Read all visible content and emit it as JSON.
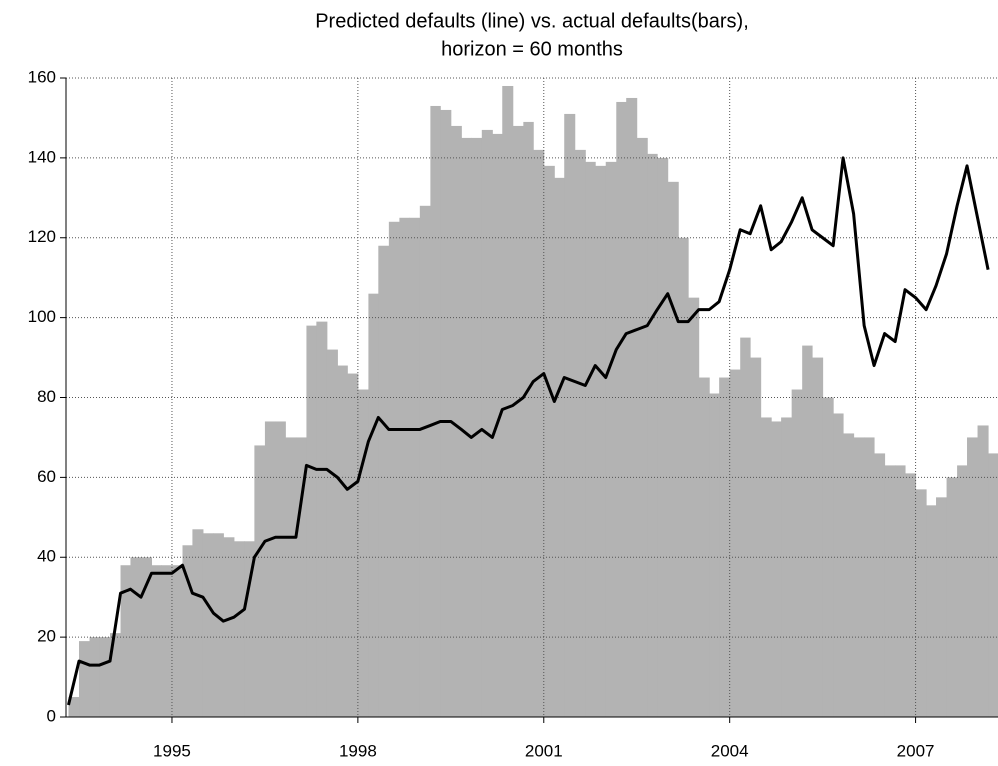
{
  "chart_data": {
    "type": "combo",
    "title": [
      "Predicted defaults (line) vs. actual defaults(bars),",
      "horizon = 60 months"
    ],
    "x": [
      1993.33,
      1993.5,
      1993.67,
      1993.83,
      1994,
      1994.17,
      1994.33,
      1994.5,
      1994.67,
      1994.83,
      1995,
      1995.17,
      1995.33,
      1995.5,
      1995.67,
      1995.83,
      1996,
      1996.17,
      1996.33,
      1996.5,
      1996.67,
      1996.83,
      1997,
      1997.17,
      1997.33,
      1997.5,
      1997.67,
      1997.83,
      1998,
      1998.17,
      1998.33,
      1998.5,
      1998.67,
      1998.83,
      1999,
      1999.17,
      1999.33,
      1999.5,
      1999.67,
      1999.83,
      2000,
      2000.17,
      2000.33,
      2000.5,
      2000.67,
      2000.83,
      2001,
      2001.17,
      2001.33,
      2001.5,
      2001.67,
      2001.83,
      2002,
      2002.17,
      2002.33,
      2002.5,
      2002.67,
      2002.83,
      2003,
      2003.17,
      2003.33,
      2003.5,
      2003.67,
      2003.83,
      2004,
      2004.17,
      2004.33,
      2004.5,
      2004.67,
      2004.83,
      2005,
      2005.17,
      2005.33,
      2005.5,
      2005.67,
      2005.83,
      2006,
      2006.17,
      2006.33,
      2006.5,
      2006.67,
      2006.83,
      2007,
      2007.17,
      2007.33,
      2007.5,
      2007.67,
      2007.83,
      2008,
      2008.17
    ],
    "series": [
      {
        "type": "bar",
        "color": "#b3b3b3",
        "values": [
          5,
          19,
          20,
          20,
          21,
          38,
          40,
          40,
          38,
          38,
          38,
          43,
          47,
          46,
          46,
          45,
          44,
          44,
          68,
          74,
          74,
          70,
          70,
          98,
          99,
          92,
          88,
          86,
          82,
          106,
          118,
          124,
          125,
          125,
          128,
          153,
          152,
          148,
          145,
          145,
          147,
          146,
          158,
          148,
          149,
          142,
          138,
          135,
          151,
          142,
          139,
          138,
          139,
          154,
          155,
          145,
          141,
          140,
          134,
          120,
          105,
          85,
          81,
          85,
          87,
          95,
          90,
          75,
          74,
          75,
          82,
          93,
          90,
          80,
          76,
          71,
          70,
          70,
          66,
          63,
          63,
          61,
          57,
          53,
          55,
          60,
          63,
          70,
          73,
          66
        ]
      },
      {
        "type": "line",
        "color": "#000000",
        "values": [
          3,
          14,
          13,
          13,
          14,
          31,
          32,
          30,
          36,
          36,
          36,
          38,
          31,
          30,
          26,
          24,
          25,
          27,
          40,
          44,
          45,
          45,
          45,
          63,
          62,
          62,
          60,
          57,
          59,
          69,
          75,
          72,
          72,
          72,
          72,
          73,
          74,
          74,
          72,
          70,
          72,
          70,
          77,
          78,
          80,
          84,
          86,
          79,
          85,
          84,
          83,
          88,
          85,
          92,
          96,
          97,
          98,
          102,
          106,
          99,
          99,
          102,
          102,
          104,
          112,
          122,
          121,
          128,
          117,
          119,
          124,
          130,
          122,
          120,
          118,
          140,
          126,
          98,
          88,
          96,
          94,
          107,
          105,
          102,
          108,
          116,
          128,
          138,
          125,
          112
        ]
      }
    ],
    "xlim": [
      1993.29,
      2008.33
    ],
    "xticks": [
      1995,
      1998,
      2001,
      2004,
      2007
    ],
    "ylim": [
      0,
      160
    ],
    "yticks": [
      0,
      20,
      40,
      60,
      80,
      100,
      120,
      140,
      160
    ],
    "grid": true
  }
}
